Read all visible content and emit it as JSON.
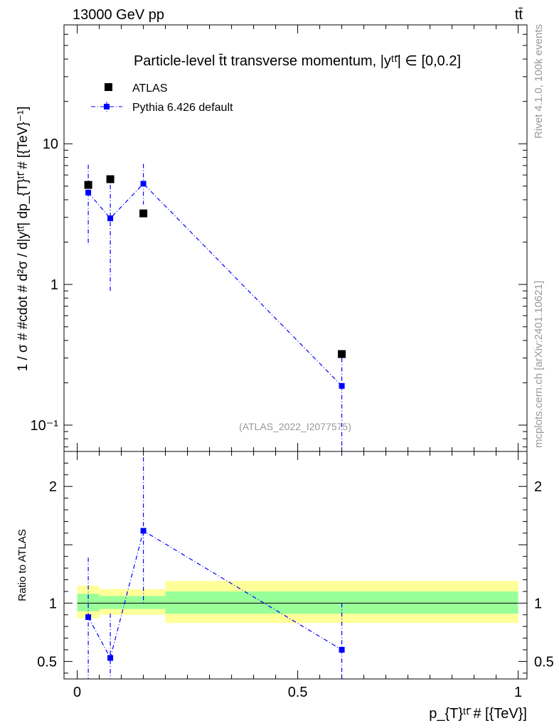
{
  "header": {
    "left": "13000 GeV pp",
    "right": "tt̄"
  },
  "side_labels": {
    "rivet": "Rivet 4.1.0,  100k events",
    "source": "mcplots.cern.ch [arXiv:2401.10621]"
  },
  "colors": {
    "data": "#000000",
    "mc": "#0000ff",
    "band_inner": "#99ff99",
    "band_outer": "#ffff99",
    "analysis_label": "#999999"
  },
  "chart_data": [
    {
      "type": "scatter",
      "title": "Particle-level t̄t transverse momentum, |yᵗᵗ̄| ∈ [0,0.2]",
      "ylabel": "1 / σ # #cdot # d²σ / d|yᵗᵗ̄| dp_{T}ᵗᵗ̄ # [{TeV}⁻¹]",
      "yscale": "log",
      "ylim": [
        0.065,
        70
      ],
      "y_ticks": [
        {
          "value": 0.1,
          "label": "10⁻¹"
        },
        {
          "value": 1,
          "label": "1"
        },
        {
          "value": 10,
          "label": "10"
        }
      ],
      "analysis_label": "(ATLAS_2022_I2077575)",
      "legend": {
        "position": "top-left",
        "entries": [
          "ATLAS",
          "Pythia 6.426 default"
        ]
      },
      "series": [
        {
          "name": "ATLAS",
          "marker": "square",
          "x": [
            0.025,
            0.075,
            0.15,
            0.6
          ],
          "y": [
            5.1,
            5.6,
            3.2,
            0.32
          ]
        },
        {
          "name": "Pythia 6.426 default",
          "marker": "square-dashdot",
          "x": [
            0.025,
            0.075,
            0.15,
            0.6
          ],
          "y": [
            4.5,
            2.95,
            5.2,
            0.19
          ],
          "y_low": [
            1.9,
            0.87,
            3.7,
            0.065
          ],
          "y_high": [
            7.1,
            5.1,
            7.2,
            0.3
          ]
        }
      ]
    },
    {
      "type": "scatter",
      "ylabel": "Ratio to ATLAS",
      "xlabel": "p_{T}ᵗᵗ̄ # [{TeV}]",
      "xlim": [
        -0.03,
        1.02
      ],
      "ylim": [
        0.35,
        2.3
      ],
      "x_ticks": [
        {
          "value": 0,
          "label": "0"
        },
        {
          "value": 0.5,
          "label": "0.5"
        },
        {
          "value": 1,
          "label": "1"
        }
      ],
      "y_ticks": [
        {
          "value": 0.5,
          "label": "0.5"
        },
        {
          "value": 1,
          "label": "1"
        },
        {
          "value": 2,
          "label": "2"
        }
      ],
      "bands": [
        {
          "x0": 0.0,
          "x1": 0.05,
          "inner": [
            0.93,
            1.08
          ],
          "outer": [
            0.87,
            1.15
          ]
        },
        {
          "x0": 0.05,
          "x1": 0.2,
          "inner": [
            0.95,
            1.06
          ],
          "outer": [
            0.9,
            1.12
          ]
        },
        {
          "x0": 0.2,
          "x1": 1.0,
          "inner": [
            0.91,
            1.1
          ],
          "outer": [
            0.83,
            1.19
          ]
        }
      ],
      "series": [
        {
          "name": "Pythia 6.426 default",
          "x": [
            0.025,
            0.075,
            0.15,
            0.6
          ],
          "y": [
            0.88,
            0.53,
            1.62,
            0.6
          ],
          "y_low": [
            0.35,
            0.35,
            1.0,
            0.35
          ],
          "y_high": [
            1.39,
            0.91,
            2.25,
            1.0
          ]
        }
      ]
    }
  ]
}
